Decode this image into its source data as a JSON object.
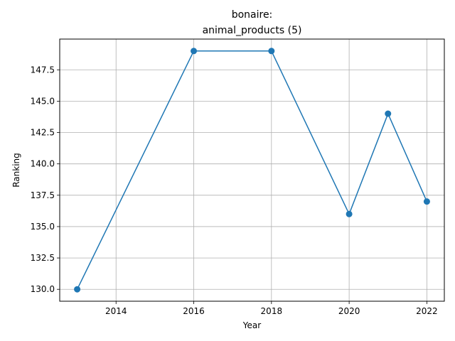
{
  "chart_data": {
    "type": "line",
    "title_line1": "bonaire:",
    "title_line2": "animal_products (5)",
    "xlabel": "Year",
    "ylabel": "Ranking",
    "xlim": [
      2012.55,
      2022.45
    ],
    "ylim": [
      129.05,
      149.95
    ],
    "x_ticks": [
      2014,
      2016,
      2018,
      2020,
      2022
    ],
    "y_ticks": [
      130.0,
      132.5,
      135.0,
      137.5,
      140.0,
      142.5,
      145.0,
      147.5
    ],
    "grid": true,
    "series": [
      {
        "x": [
          2013,
          2016,
          2018,
          2020,
          2021,
          2022
        ],
        "y": [
          130,
          149,
          149,
          136,
          144,
          137
        ],
        "color": "#1f77b4",
        "marker": "circle"
      }
    ]
  }
}
